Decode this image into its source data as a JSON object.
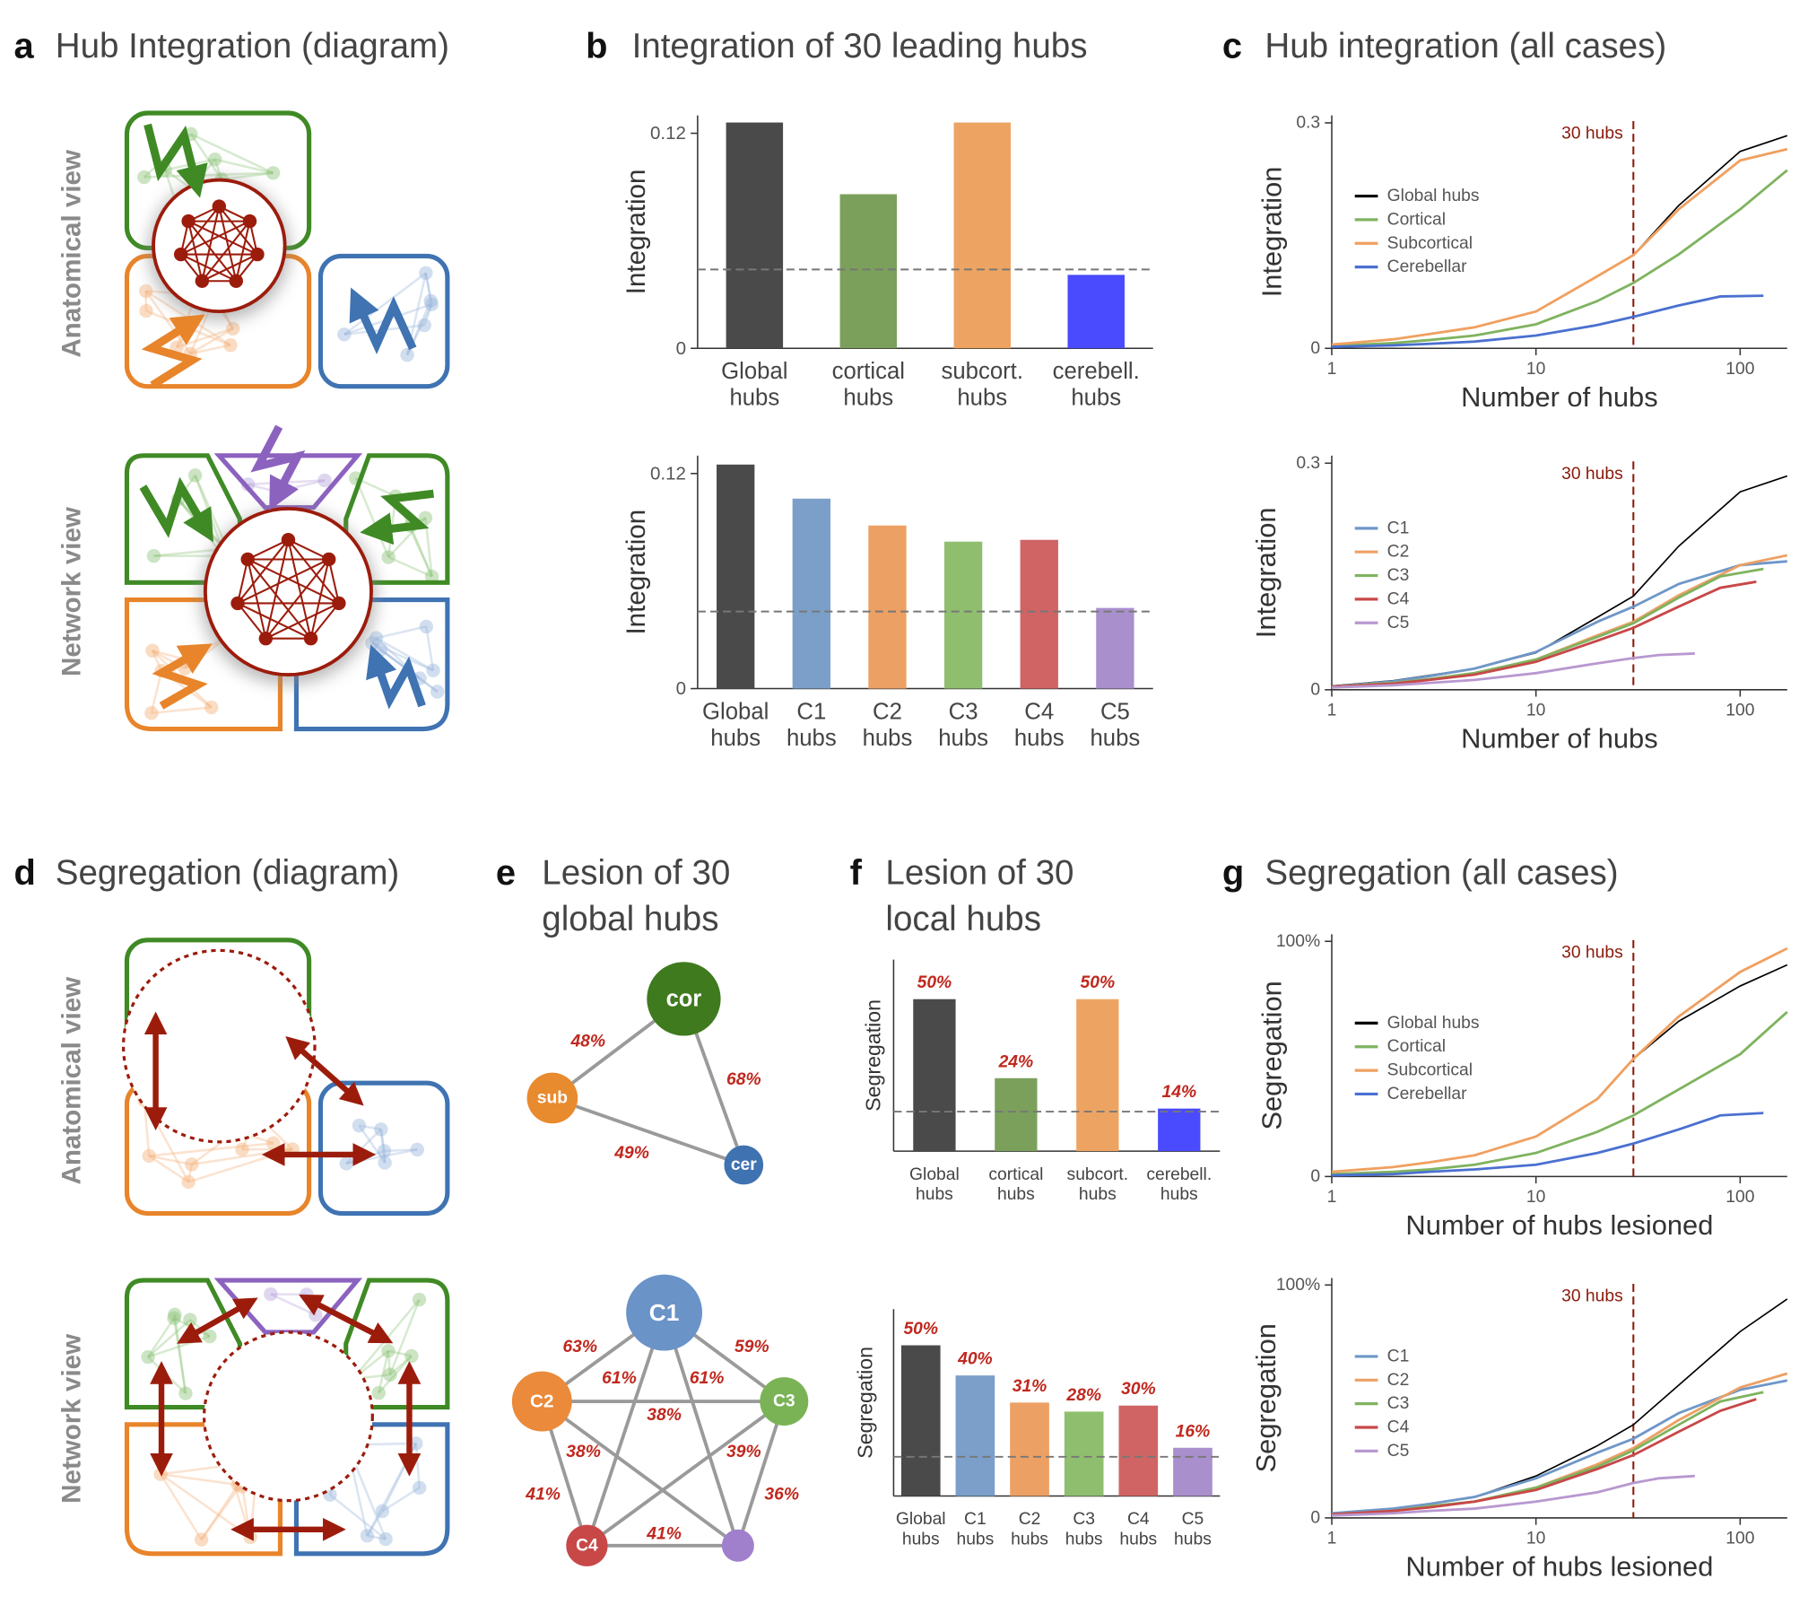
{
  "panels": [
    {
      "letter": "a",
      "title": [
        "Hub Integration (diagram)"
      ]
    },
    {
      "letter": "b",
      "title": [
        "Integration of 30 leading hubs"
      ]
    },
    {
      "letter": "c",
      "title": [
        "Hub integration (all cases)"
      ]
    },
    {
      "letter": "d",
      "title": [
        "Segregation (diagram)"
      ]
    },
    {
      "letter": "e",
      "title": [
        "Lesion of 30",
        "global hubs"
      ]
    },
    {
      "letter": "f",
      "title": [
        "Lesion of 30",
        "local hubs"
      ]
    },
    {
      "letter": "g",
      "title": [
        "Segregation (all cases)"
      ]
    }
  ],
  "diagram_views": [
    "Anatomical view",
    "Network view"
  ],
  "networks": [
    {
      "nodes": [
        {
          "label": "cor",
          "color": "#3f7a1f"
        },
        {
          "label": "sub",
          "color": "#e88a2e"
        },
        {
          "label": "cer",
          "color": "#3f72b0"
        }
      ],
      "edges": [
        {
          "from": 0,
          "to": 1,
          "label": "48%"
        },
        {
          "from": 0,
          "to": 2,
          "label": "68%"
        },
        {
          "from": 1,
          "to": 2,
          "label": "49%"
        }
      ]
    },
    {
      "nodes": [
        {
          "label": "C1",
          "color": "#6a93c8"
        },
        {
          "label": "C2",
          "color": "#ea8a3a"
        },
        {
          "label": "C3",
          "color": "#7ab356"
        },
        {
          "label": "C4",
          "color": "#c84848"
        },
        {
          "color": "#a080cc"
        }
      ],
      "edges": [
        {
          "from": 0,
          "to": 1,
          "label": "63%"
        },
        {
          "from": 0,
          "to": 2,
          "label": "59%"
        },
        {
          "from": 0,
          "to": 3,
          "label": "61%"
        },
        {
          "from": 0,
          "to": 4,
          "label": "61%"
        },
        {
          "from": 1,
          "to": 2,
          "label": "38%"
        },
        {
          "from": 1,
          "to": 4,
          "label": "38%"
        },
        {
          "from": 2,
          "to": 3,
          "label": "39%"
        },
        {
          "from": 1,
          "to": 3,
          "label": "41%"
        },
        {
          "from": 2,
          "to": 4,
          "label": "36%"
        },
        {
          "from": 3,
          "to": 4,
          "label": "41%"
        }
      ]
    }
  ],
  "chart_data": [
    {
      "type": "bar",
      "ylabel": "Integration",
      "categories": [
        "Global hubs",
        "cortical hubs",
        "subcort. hubs",
        "cerebell. hubs"
      ],
      "values": [
        0.126,
        0.086,
        0.126,
        0.041
      ],
      "colors": [
        "#4a4a4a",
        "#7ba05b",
        "#eda462",
        "#4a4aff"
      ],
      "ylim": [
        0,
        0.13
      ],
      "yticks": [
        0,
        0.12
      ],
      "hline": 0.044
    },
    {
      "type": "bar",
      "ylabel": "Integration",
      "categories": [
        "Global hubs",
        "C1 hubs",
        "C2 hubs",
        "C3 hubs",
        "C4 hubs",
        "C5 hubs"
      ],
      "values": [
        0.125,
        0.106,
        0.091,
        0.082,
        0.083,
        0.045
      ],
      "colors": [
        "#4a4a4a",
        "#7b9fc9",
        "#eda064",
        "#8fbf6e",
        "#d06464",
        "#a98fcc"
      ],
      "ylim": [
        0,
        0.13
      ],
      "yticks": [
        0,
        0.12
      ],
      "hline": 0.043
    },
    {
      "type": "line",
      "ylabel": "Integration",
      "xlabel": "Number of hubs",
      "xscale": "log",
      "xlim": [
        1,
        170
      ],
      "xticks": [
        1,
        10,
        100
      ],
      "ylim": [
        0,
        0.31
      ],
      "yticks": [
        0,
        0.3
      ],
      "vline": {
        "value": 30,
        "label": "30 hubs"
      },
      "legend": "upper left",
      "series": [
        {
          "name": "Global hubs",
          "color": "#000000",
          "x": [
            1,
            2,
            3,
            5,
            10,
            20,
            30,
            50,
            100,
            170
          ],
          "values": [
            0.005,
            0.012,
            0.019,
            0.028,
            0.049,
            0.096,
            0.124,
            0.19,
            0.262,
            0.283
          ]
        },
        {
          "name": "Cortical",
          "color": "#7fb35f",
          "x": [
            1,
            2,
            3,
            5,
            10,
            20,
            30,
            50,
            100,
            170
          ],
          "values": [
            0.003,
            0.007,
            0.011,
            0.017,
            0.032,
            0.063,
            0.087,
            0.125,
            0.185,
            0.237
          ]
        },
        {
          "name": "Subcortical",
          "color": "#f0a060",
          "x": [
            1,
            2,
            3,
            5,
            10,
            20,
            30,
            50,
            100,
            170
          ],
          "values": [
            0.005,
            0.012,
            0.019,
            0.028,
            0.049,
            0.096,
            0.124,
            0.185,
            0.25,
            0.265
          ]
        },
        {
          "name": "Cerebellar",
          "color": "#4a70d0",
          "x": [
            1,
            2,
            3,
            5,
            10,
            20,
            30,
            50,
            80,
            130
          ],
          "values": [
            0.002,
            0.004,
            0.006,
            0.009,
            0.017,
            0.031,
            0.042,
            0.057,
            0.069,
            0.07
          ]
        }
      ]
    },
    {
      "type": "line",
      "ylabel": "Integration",
      "xlabel": "Number of hubs",
      "xscale": "log",
      "xlim": [
        1,
        170
      ],
      "xticks": [
        1,
        10,
        100
      ],
      "ylim": [
        0,
        0.31
      ],
      "yticks": [
        0,
        0.3
      ],
      "vline": {
        "value": 30,
        "label": "30 hubs"
      },
      "legend": "upper left",
      "series": [
        {
          "color": "#000000",
          "x": [
            1,
            2,
            3,
            5,
            10,
            20,
            30,
            50,
            100,
            170
          ],
          "values": [
            0.005,
            0.012,
            0.019,
            0.028,
            0.049,
            0.096,
            0.124,
            0.19,
            0.262,
            0.283
          ]
        },
        {
          "name": "C1",
          "color": "#6f97c8",
          "x": [
            1,
            2,
            3,
            5,
            10,
            20,
            30,
            50,
            100,
            170
          ],
          "values": [
            0.004,
            0.011,
            0.018,
            0.028,
            0.05,
            0.09,
            0.11,
            0.14,
            0.165,
            0.17
          ]
        },
        {
          "name": "C2",
          "color": "#eda064",
          "x": [
            1,
            2,
            3,
            5,
            10,
            20,
            30,
            50,
            100,
            170
          ],
          "values": [
            0.004,
            0.009,
            0.014,
            0.022,
            0.04,
            0.072,
            0.09,
            0.125,
            0.165,
            0.178
          ]
        },
        {
          "name": "C3",
          "color": "#7fb35f",
          "x": [
            1,
            2,
            3,
            5,
            10,
            20,
            30,
            50,
            80,
            130
          ],
          "values": [
            0.004,
            0.009,
            0.014,
            0.022,
            0.04,
            0.07,
            0.088,
            0.122,
            0.15,
            0.16
          ]
        },
        {
          "name": "C4",
          "color": "#c84848",
          "x": [
            1,
            2,
            3,
            5,
            10,
            20,
            30,
            50,
            80,
            120
          ],
          "values": [
            0.004,
            0.008,
            0.013,
            0.02,
            0.037,
            0.065,
            0.082,
            0.11,
            0.135,
            0.143
          ]
        },
        {
          "name": "C5",
          "color": "#b898d0",
          "x": [
            1,
            2,
            3,
            5,
            10,
            20,
            30,
            40,
            60
          ],
          "values": [
            0.003,
            0.006,
            0.009,
            0.013,
            0.022,
            0.035,
            0.042,
            0.046,
            0.048
          ]
        }
      ]
    },
    {
      "type": "bar",
      "ylabel": "Segregation",
      "categories": [
        "Global hubs",
        "cortical hubs",
        "subcort. hubs",
        "cerebell. hubs"
      ],
      "values": [
        50,
        24,
        50,
        14
      ],
      "value_labels": [
        "50%",
        "24%",
        "50%",
        "14%"
      ],
      "colors": [
        "#4a4a4a",
        "#7ba05b",
        "#eda462",
        "#4a4aff"
      ],
      "ylim": [
        0,
        63
      ],
      "hline": 13
    },
    {
      "type": "bar",
      "ylabel": "Segregation",
      "categories": [
        "Global hubs",
        "C1 hubs",
        "C2 hubs",
        "C3 hubs",
        "C4 hubs",
        "C5 hubs"
      ],
      "values": [
        50,
        40,
        31,
        28,
        30,
        16
      ],
      "value_labels": [
        "50%",
        "40%",
        "31%",
        "28%",
        "30%",
        "16%"
      ],
      "colors": [
        "#4a4a4a",
        "#7b9fc9",
        "#eda064",
        "#8fbf6e",
        "#d06464",
        "#a98fcc"
      ],
      "ylim": [
        0,
        62
      ],
      "hline": 13
    },
    {
      "type": "line",
      "ylabel": "Segregation",
      "xlabel": "Number of hubs lesioned",
      "xscale": "log",
      "xlim": [
        1,
        170
      ],
      "xticks": [
        1,
        10,
        100
      ],
      "ylim": [
        0,
        103
      ],
      "yticks": [
        0,
        {
          "value": 100,
          "label": "100%"
        }
      ],
      "vline": {
        "value": 30,
        "label": "30 hubs"
      },
      "legend": "upper left",
      "series": [
        {
          "name": "Global hubs",
          "color": "#000000",
          "x": [
            1,
            2,
            3,
            5,
            10,
            20,
            30,
            50,
            100,
            170
          ],
          "values": [
            2,
            4,
            6,
            9,
            17,
            33,
            50,
            66,
            81,
            90
          ]
        },
        {
          "name": "Cortical",
          "color": "#7fb35f",
          "x": [
            1,
            2,
            3,
            5,
            10,
            20,
            30,
            50,
            100,
            170
          ],
          "values": [
            1,
            2,
            3,
            5,
            10,
            19,
            26,
            37,
            52,
            70
          ]
        },
        {
          "name": "Subcortical",
          "color": "#f0a060",
          "x": [
            1,
            2,
            3,
            5,
            10,
            20,
            30,
            50,
            100,
            170
          ],
          "values": [
            2,
            4,
            6,
            9,
            17,
            33,
            50,
            68,
            87,
            97
          ]
        },
        {
          "name": "Cerebellar",
          "color": "#4a70d0",
          "x": [
            1,
            2,
            3,
            5,
            10,
            20,
            30,
            50,
            80,
            130
          ],
          "values": [
            0.5,
            1,
            2,
            3,
            5,
            10,
            14,
            20,
            26,
            27
          ]
        }
      ]
    },
    {
      "type": "line",
      "ylabel": "Segregation",
      "xlabel": "Number of hubs lesioned",
      "xscale": "log",
      "xlim": [
        1,
        170
      ],
      "xticks": [
        1,
        10,
        100
      ],
      "ylim": [
        0,
        103
      ],
      "yticks": [
        0,
        {
          "value": 100,
          "label": "100%"
        }
      ],
      "vline": {
        "value": 30,
        "label": "30 hubs"
      },
      "legend": "upper left",
      "series": [
        {
          "color": "#000000",
          "x": [
            1,
            2,
            3,
            5,
            10,
            20,
            30,
            50,
            100,
            170
          ],
          "values": [
            2,
            4,
            6,
            9,
            18,
            31,
            40,
            57,
            80,
            94
          ]
        },
        {
          "name": "C1",
          "color": "#6f97c8",
          "x": [
            1,
            2,
            3,
            5,
            10,
            20,
            30,
            50,
            100,
            170
          ],
          "values": [
            2,
            4,
            6,
            9,
            17,
            28,
            34,
            45,
            55,
            59
          ]
        },
        {
          "name": "C2",
          "color": "#eda064",
          "x": [
            1,
            2,
            3,
            5,
            10,
            20,
            30,
            50,
            100,
            170
          ],
          "values": [
            1.5,
            3,
            5,
            7,
            13,
            23,
            30,
            42,
            56,
            62
          ]
        },
        {
          "name": "C3",
          "color": "#7fb35f",
          "x": [
            1,
            2,
            3,
            5,
            10,
            20,
            30,
            50,
            80,
            130
          ],
          "values": [
            1.5,
            3,
            5,
            7,
            13,
            22,
            29,
            40,
            50,
            54
          ]
        },
        {
          "name": "C4",
          "color": "#c84848",
          "x": [
            1,
            2,
            3,
            5,
            10,
            20,
            30,
            50,
            80,
            120
          ],
          "values": [
            1.5,
            3,
            4.5,
            7,
            12,
            21,
            27,
            37,
            46,
            51
          ]
        },
        {
          "name": "C5",
          "color": "#b898d0",
          "x": [
            1,
            2,
            3,
            5,
            10,
            20,
            30,
            40,
            60
          ],
          "values": [
            1,
            2,
            3,
            4,
            7,
            11,
            15,
            17,
            18
          ]
        }
      ]
    }
  ]
}
